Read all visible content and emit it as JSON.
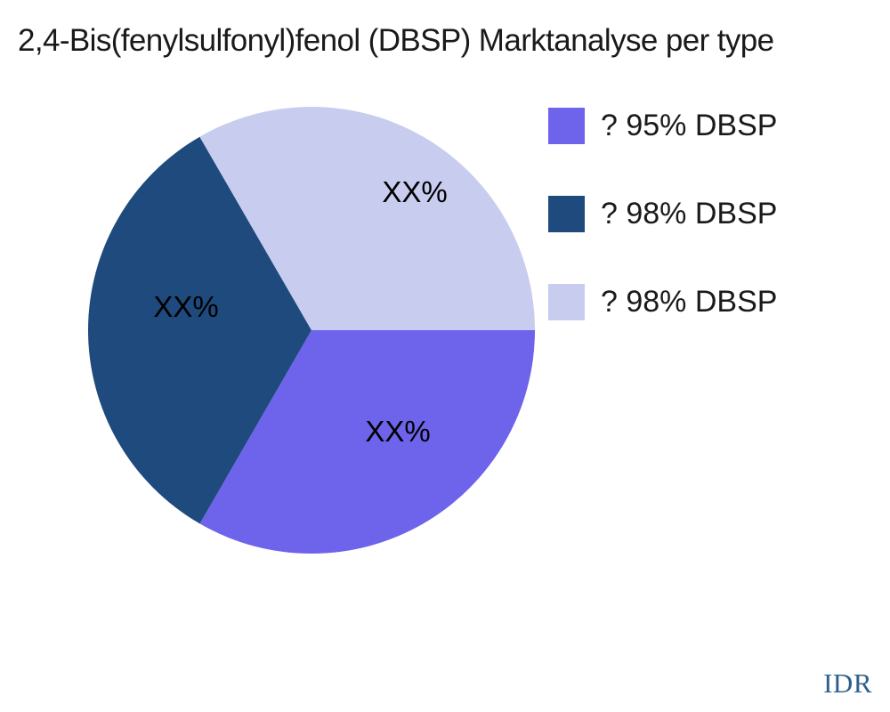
{
  "title": "2,4-Bis(fenylsulfonyl)fenol (DBSP) Marktanalyse per type",
  "watermark": "IDR",
  "colors": {
    "background": "#ffffff",
    "title_text": "#1a1a1a",
    "slice_label_text": "#000000",
    "watermark_blue": "#2e5f8c",
    "purple": "#6e63eb",
    "dark_blue": "#1f4a7d",
    "lavender": "#c8cdf0"
  },
  "chart_data": {
    "type": "pie",
    "title": "2,4-Bis(fenylsulfonyl)fenol (DBSP) Marktanalyse per type",
    "legend_position": "right",
    "start_angle": "east",
    "direction": "clockwise",
    "slices": [
      {
        "label": "? 95% DBSP",
        "display_value": "XX%",
        "value": 33.33,
        "color": "#6e63eb"
      },
      {
        "label": "? 98% DBSP",
        "display_value": "XX%",
        "value": 33.33,
        "color": "#1f4a7d"
      },
      {
        "label": "? 98% DBSP",
        "display_value": "XX%",
        "value": 33.34,
        "color": "#c8cdf0"
      }
    ]
  }
}
